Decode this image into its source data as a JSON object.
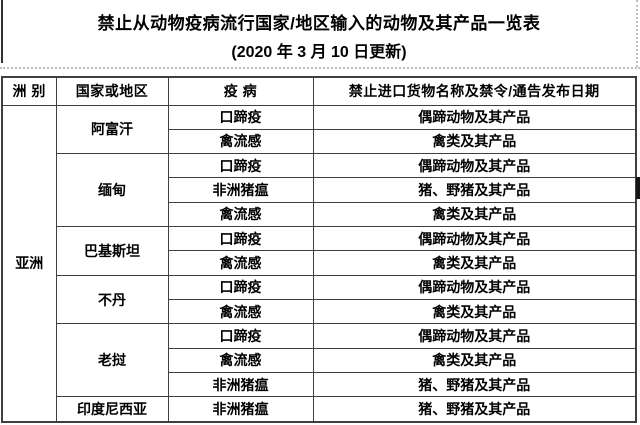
{
  "title": "禁止从动物疫病流行国家/地区输入的动物及其产品一览表",
  "subtitle": "(2020 年 3 月 10 日更新)",
  "table": {
    "headers": [
      "洲 别",
      "国家或地区",
      "疫 病",
      "禁止进口货物名称及禁令/通告发布日期"
    ],
    "continent": "亚洲",
    "groups": [
      {
        "country": "阿富汗",
        "rows": [
          {
            "disease": "口蹄疫",
            "goods": "偶蹄动物及其产品"
          },
          {
            "disease": "禽流感",
            "goods": "禽类及其产品"
          }
        ]
      },
      {
        "country": "缅甸",
        "rows": [
          {
            "disease": "口蹄疫",
            "goods": "偶蹄动物及其产品"
          },
          {
            "disease": "非洲猪瘟",
            "goods": "猪、野猪及其产品"
          },
          {
            "disease": "禽流感",
            "goods": "禽类及其产品"
          }
        ]
      },
      {
        "country": "巴基斯坦",
        "rows": [
          {
            "disease": "口蹄疫",
            "goods": "偶蹄动物及其产品"
          },
          {
            "disease": "禽流感",
            "goods": "禽类及其产品"
          }
        ]
      },
      {
        "country": "不丹",
        "rows": [
          {
            "disease": "口蹄疫",
            "goods": "偶蹄动物及其产品"
          },
          {
            "disease": "禽流感",
            "goods": "禽类及其产品"
          }
        ]
      },
      {
        "country": "老挝",
        "rows": [
          {
            "disease": "口蹄疫",
            "goods": "偶蹄动物及其产品"
          },
          {
            "disease": "禽流感",
            "goods": "禽类及其产品"
          },
          {
            "disease": "非洲猪瘟",
            "goods": "猪、野猪及其产品"
          }
        ]
      },
      {
        "country": "印度尼西亚",
        "rows": [
          {
            "disease": "非洲猪瘟",
            "goods": "猪、野猪及其产品"
          }
        ]
      }
    ]
  },
  "colors": {
    "table_border": "#3f3f3f",
    "boundary_dotted": "#bfbfbf",
    "text": "#000000"
  }
}
